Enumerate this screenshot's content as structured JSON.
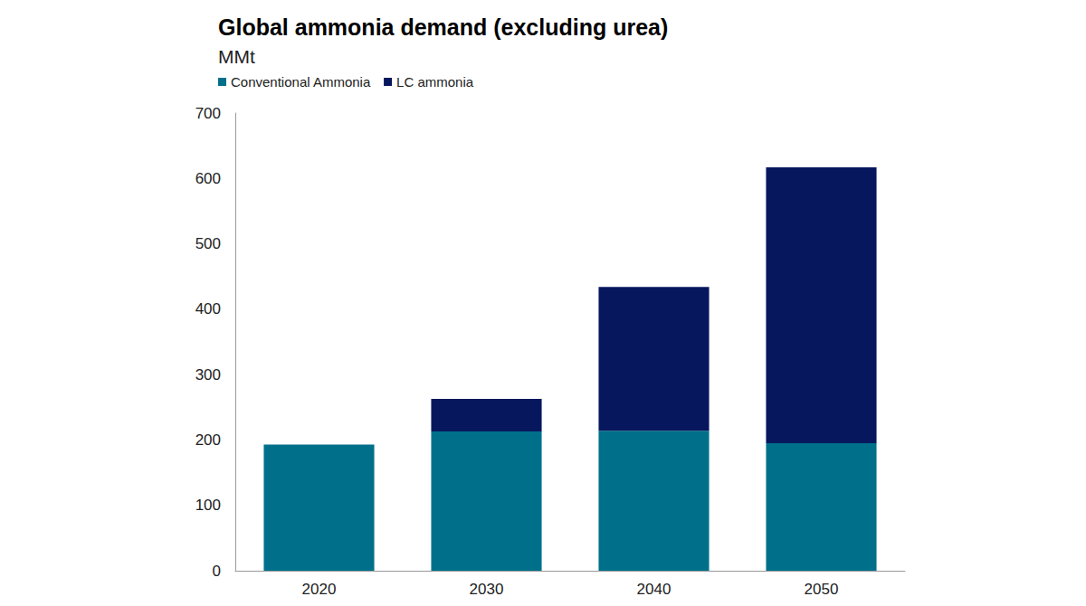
{
  "chart_data": {
    "type": "bar",
    "title": "Global ammonia demand (excluding urea)",
    "subtitle": "MMt",
    "categories": [
      "2020",
      "2030",
      "2040",
      "2050"
    ],
    "series": [
      {
        "name": "Conventional Ammonia",
        "color": "#00708a",
        "values": [
          193,
          213,
          214,
          195
        ]
      },
      {
        "name": "LC ammonia",
        "color": "#07175e",
        "values": [
          0,
          50,
          220,
          422
        ]
      }
    ],
    "stacked": true,
    "ylim": [
      0,
      700
    ],
    "yticks": [
      0,
      100,
      200,
      300,
      400,
      500,
      600,
      700
    ],
    "grid": false,
    "legend": "top-left"
  }
}
